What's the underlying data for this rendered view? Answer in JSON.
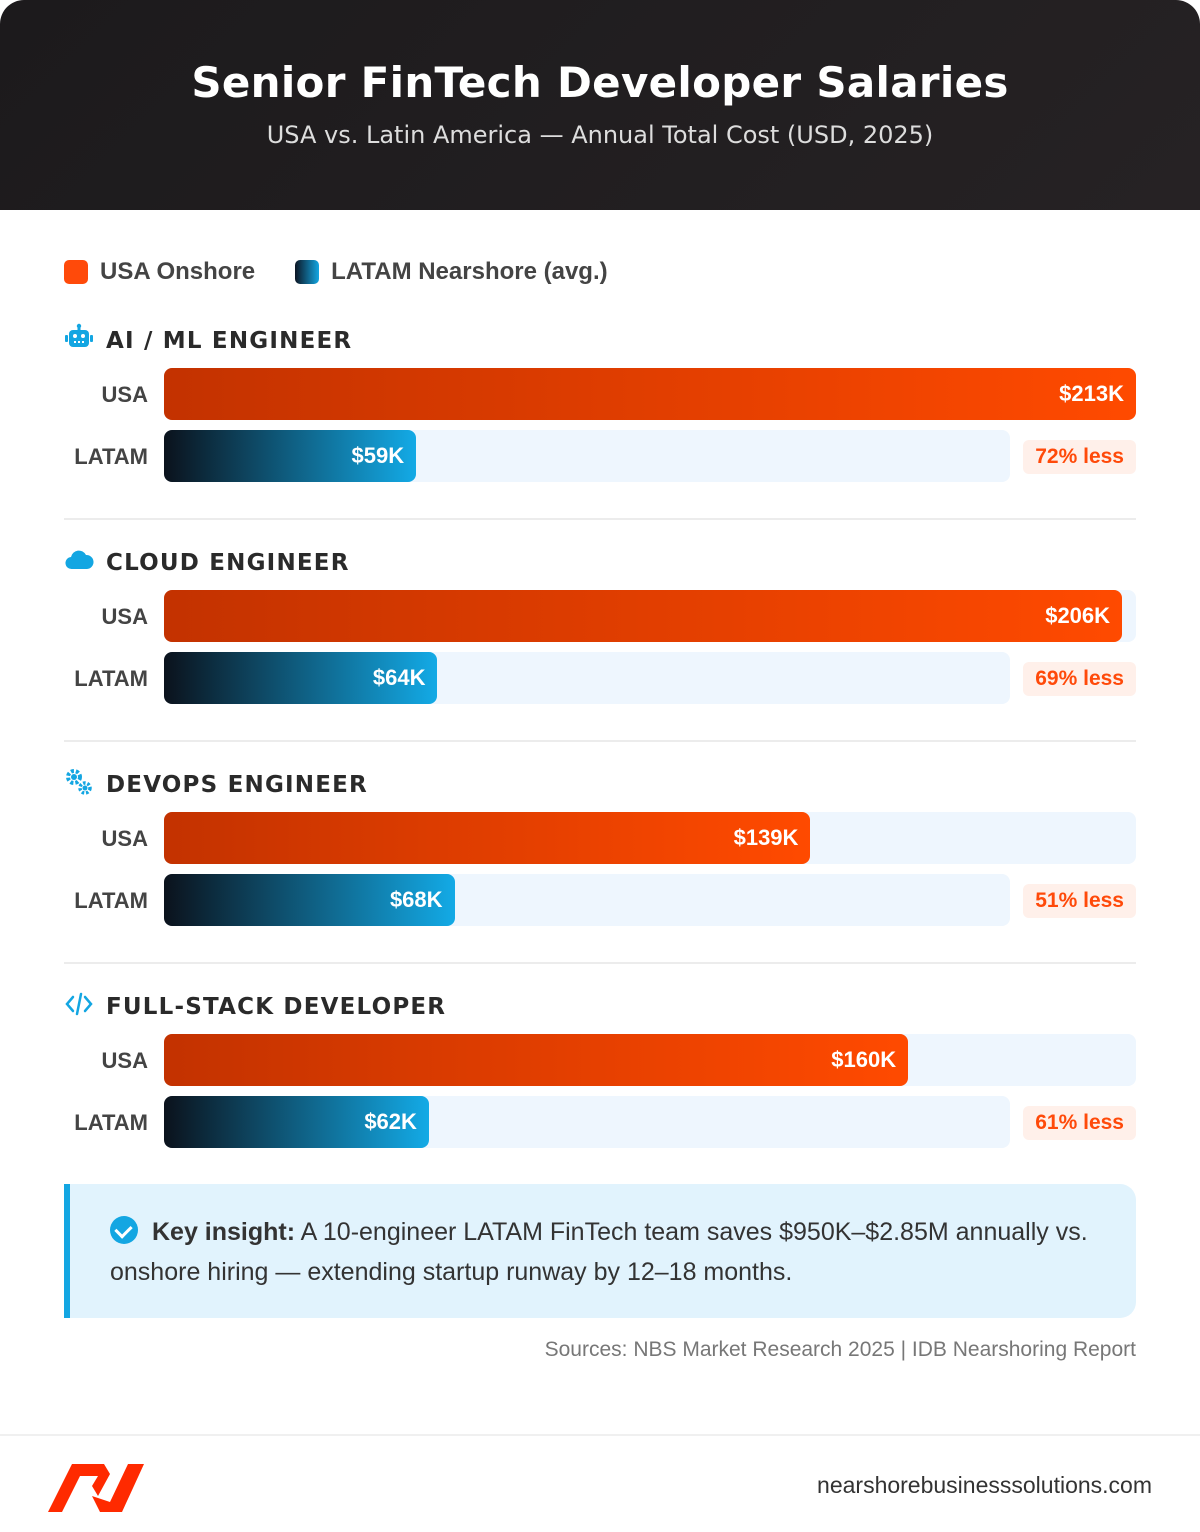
{
  "header": {
    "title": "Senior FinTech Developer Salaries",
    "subtitle": "USA vs. Latin America — Annual Total Cost (USD, 2025)"
  },
  "chart_data": {
    "type": "bar",
    "orientation": "horizontal",
    "legend": {
      "position": "top-left",
      "entries": [
        "USA Onshore",
        "LATAM Nearshore (avg.)"
      ]
    },
    "colors": {
      "usa": "#ff4a0a",
      "latam": "#13a6e2"
    },
    "row_labels": {
      "usa": "USA",
      "latam": "LATAM"
    },
    "categories": [
      {
        "title": "AI / ML ENGINEER",
        "icon": "robot-icon",
        "usa": 213,
        "usa_label": "$213K",
        "latam": 59,
        "latam_label": "$59K",
        "savings": "72% less"
      },
      {
        "title": "CLOUD ENGINEER",
        "icon": "cloud-icon",
        "usa": 206,
        "usa_label": "$206K",
        "latam": 64,
        "latam_label": "$64K",
        "savings": "69% less"
      },
      {
        "title": "DEVOPS ENGINEER",
        "icon": "gears-icon",
        "usa": 139,
        "usa_label": "$139K",
        "latam": 68,
        "latam_label": "$68K",
        "savings": "51% less"
      },
      {
        "title": "FULL-STACK DEVELOPER",
        "icon": "code-icon",
        "usa": 160,
        "usa_label": "$160K",
        "latam": 62,
        "latam_label": "$62K",
        "savings": "61% less"
      }
    ]
  },
  "insight": {
    "bold": "Key insight:",
    "text": " A 10-engineer LATAM FinTech team saves $950K–$2.85M annually vs. onshore hiring — extending startup runway by 12–18 months."
  },
  "sources": "Sources: NBS Market Research 2025 | IDB Nearshoring Report",
  "footer": {
    "site": "nearshorebusinesssolutions.com"
  }
}
